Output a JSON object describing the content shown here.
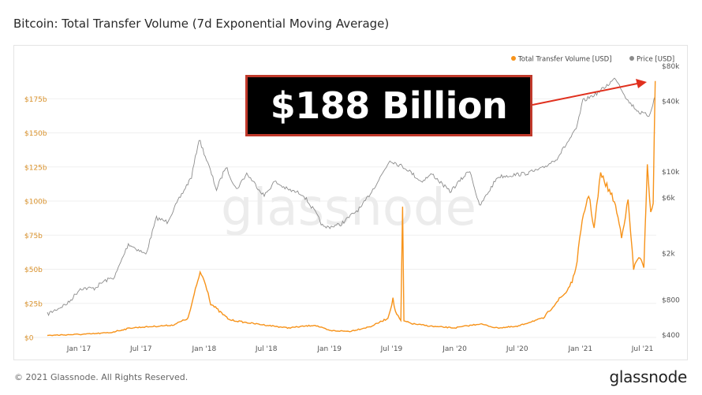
{
  "page": {
    "title": "Bitcoin: Total Transfer Volume (7d Exponential Moving Average)",
    "copyright": "© 2021 Glassnode. All Rights Reserved.",
    "brand": "glassnode",
    "watermark": "glassnode",
    "annotation": "$188 Billion"
  },
  "colors": {
    "volume": "#f7931a",
    "price": "#8c8c8c",
    "grid": "#efefef",
    "left_axis_text": "#d9912a",
    "right_axis_text": "#555555",
    "annotation_border": "#c0392b",
    "arrow": "#e0301e"
  },
  "chart_data": {
    "type": "line",
    "title": "Bitcoin: Total Transfer Volume (7d Exponential Moving Average)",
    "legend_position": "top-right",
    "grid": true,
    "x": {
      "range": [
        "2016-10-01",
        "2021-08-10"
      ],
      "ticks": [
        {
          "date": "2017-01-01",
          "label": "Jan '17"
        },
        {
          "date": "2017-07-01",
          "label": "Jul '17"
        },
        {
          "date": "2018-01-01",
          "label": "Jan '18"
        },
        {
          "date": "2018-07-01",
          "label": "Jul '18"
        },
        {
          "date": "2019-01-01",
          "label": "Jan '19"
        },
        {
          "date": "2019-07-01",
          "label": "Jul '19"
        },
        {
          "date": "2020-01-01",
          "label": "Jan '20"
        },
        {
          "date": "2020-07-01",
          "label": "Jul '20"
        },
        {
          "date": "2021-01-01",
          "label": "Jan '21"
        },
        {
          "date": "2021-07-01",
          "label": "Jul '21"
        }
      ]
    },
    "y_left": {
      "scale": "linear",
      "range": [
        0,
        200000000000
      ],
      "ticks": [
        {
          "value": 0,
          "label": "$0"
        },
        {
          "value": 25000000000,
          "label": "$25b"
        },
        {
          "value": 50000000000,
          "label": "$50b"
        },
        {
          "value": 75000000000,
          "label": "$75b"
        },
        {
          "value": 100000000000,
          "label": "$100b"
        },
        {
          "value": 125000000000,
          "label": "$125b"
        },
        {
          "value": 150000000000,
          "label": "$150b"
        },
        {
          "value": 175000000000,
          "label": "$175b"
        }
      ]
    },
    "y_right": {
      "scale": "log",
      "range": [
        380,
        82000
      ],
      "ticks": [
        {
          "value": 400,
          "label": "$400"
        },
        {
          "value": 800,
          "label": "$800"
        },
        {
          "value": 2000,
          "label": "$2k"
        },
        {
          "value": 6000,
          "label": "$6k"
        },
        {
          "value": 10000,
          "label": "$10k"
        },
        {
          "value": 40000,
          "label": "$40k"
        },
        {
          "value": 80000,
          "label": "$80k"
        }
      ]
    },
    "series": [
      {
        "name": "Total Transfer Volume [USD]",
        "axis": "left",
        "color": "#f7931a",
        "points": [
          [
            "2016-10-01",
            1500000000
          ],
          [
            "2016-12-01",
            2000000000
          ],
          [
            "2017-02-01",
            2500000000
          ],
          [
            "2017-04-01",
            3500000000
          ],
          [
            "2017-06-01",
            7000000000
          ],
          [
            "2017-08-01",
            8000000000
          ],
          [
            "2017-10-01",
            9000000000
          ],
          [
            "2017-11-15",
            14000000000
          ],
          [
            "2017-12-10",
            38000000000
          ],
          [
            "2017-12-20",
            48000000000
          ],
          [
            "2018-01-05",
            40000000000
          ],
          [
            "2018-01-20",
            25000000000
          ],
          [
            "2018-02-10",
            20000000000
          ],
          [
            "2018-03-15",
            13000000000
          ],
          [
            "2018-05-01",
            11000000000
          ],
          [
            "2018-07-01",
            9000000000
          ],
          [
            "2018-09-01",
            7000000000
          ],
          [
            "2018-11-20",
            9000000000
          ],
          [
            "2019-01-01",
            5000000000
          ],
          [
            "2019-03-01",
            4500000000
          ],
          [
            "2019-05-01",
            8000000000
          ],
          [
            "2019-06-20",
            14000000000
          ],
          [
            "2019-07-05",
            28000000000
          ],
          [
            "2019-07-12",
            19000000000
          ],
          [
            "2019-07-28",
            12000000000
          ],
          [
            "2019-08-02",
            95000000000
          ],
          [
            "2019-08-06",
            12000000000
          ],
          [
            "2019-09-01",
            10000000000
          ],
          [
            "2019-11-01",
            8000000000
          ],
          [
            "2020-01-01",
            7000000000
          ],
          [
            "2020-03-15",
            10000000000
          ],
          [
            "2020-05-01",
            7000000000
          ],
          [
            "2020-07-01",
            8000000000
          ],
          [
            "2020-08-15",
            12000000000
          ],
          [
            "2020-09-15",
            14000000000
          ],
          [
            "2020-10-20",
            25000000000
          ],
          [
            "2020-11-20",
            33000000000
          ],
          [
            "2020-12-15",
            45000000000
          ],
          [
            "2021-01-10",
            90000000000
          ],
          [
            "2021-01-25",
            105000000000
          ],
          [
            "2021-02-10",
            80000000000
          ],
          [
            "2021-03-01",
            120000000000
          ],
          [
            "2021-04-10",
            100000000000
          ],
          [
            "2021-05-01",
            75000000000
          ],
          [
            "2021-05-20",
            100000000000
          ],
          [
            "2021-06-05",
            50000000000
          ],
          [
            "2021-06-20",
            60000000000
          ],
          [
            "2021-07-05",
            50000000000
          ],
          [
            "2021-07-15",
            128000000000
          ],
          [
            "2021-07-25",
            90000000000
          ],
          [
            "2021-08-01",
            100000000000
          ],
          [
            "2021-08-07",
            188000000000
          ]
        ]
      },
      {
        "name": "Price [USD]",
        "axis": "right",
        "color": "#8c8c8c",
        "points": [
          [
            "2016-10-01",
            600
          ],
          [
            "2016-12-01",
            750
          ],
          [
            "2017-01-05",
            1000
          ],
          [
            "2017-02-15",
            1000
          ],
          [
            "2017-03-15",
            1150
          ],
          [
            "2017-04-15",
            1250
          ],
          [
            "2017-05-25",
            2400
          ],
          [
            "2017-07-15",
            1950
          ],
          [
            "2017-08-15",
            4000
          ],
          [
            "2017-09-15",
            3700
          ],
          [
            "2017-10-20",
            5800
          ],
          [
            "2017-11-25",
            9000
          ],
          [
            "2017-12-17",
            19000
          ],
          [
            "2018-01-15",
            11000
          ],
          [
            "2018-02-06",
            7000
          ],
          [
            "2018-03-05",
            11000
          ],
          [
            "2018-04-05",
            7000
          ],
          [
            "2018-05-05",
            9600
          ],
          [
            "2018-06-25",
            6200
          ],
          [
            "2018-07-25",
            8200
          ],
          [
            "2018-09-01",
            7000
          ],
          [
            "2018-10-15",
            6400
          ],
          [
            "2018-11-20",
            4500
          ],
          [
            "2018-12-15",
            3300
          ],
          [
            "2019-02-01",
            3500
          ],
          [
            "2019-04-05",
            5000
          ],
          [
            "2019-05-25",
            8500
          ],
          [
            "2019-06-26",
            12500
          ],
          [
            "2019-08-15",
            10500
          ],
          [
            "2019-09-25",
            8200
          ],
          [
            "2019-10-27",
            9500
          ],
          [
            "2019-12-18",
            6700
          ],
          [
            "2020-02-14",
            10300
          ],
          [
            "2020-03-13",
            5000
          ],
          [
            "2020-05-05",
            9000
          ],
          [
            "2020-07-25",
            9600
          ],
          [
            "2020-09-10",
            10500
          ],
          [
            "2020-10-25",
            13000
          ],
          [
            "2020-12-20",
            23000
          ],
          [
            "2021-01-08",
            40000
          ],
          [
            "2021-02-25",
            48000
          ],
          [
            "2021-04-14",
            63000
          ],
          [
            "2021-05-20",
            40000
          ],
          [
            "2021-06-22",
            32000
          ],
          [
            "2021-07-20",
            30000
          ],
          [
            "2021-08-07",
            44000
          ]
        ]
      }
    ]
  }
}
